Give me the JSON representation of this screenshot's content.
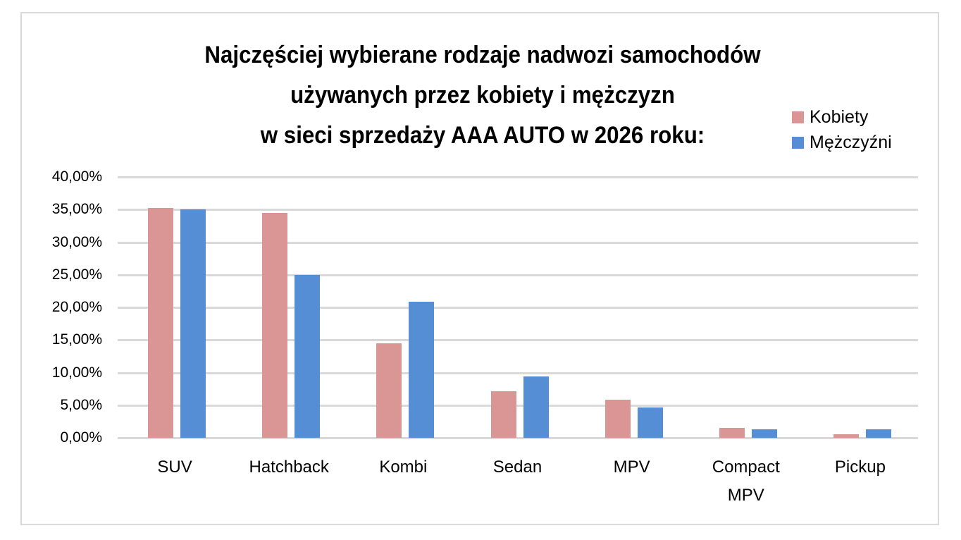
{
  "chart_data": {
    "type": "bar",
    "title": "Najczęściej wybierane rodzaje nadwozi samochodów używanych przez kobiety i mężczyzn w sieci sprzedaży AAA AUTO w 2026 roku:",
    "title_lines": [
      "Najczęściej wybierane rodzaje nadwozi samochodów",
      "używanych przez kobiety i mężczyzn",
      "w sieci sprzedaży AAA AUTO w 2026 roku:"
    ],
    "categories": [
      "SUV",
      "Hatchback",
      "Kombi",
      "Sedan",
      "MPV",
      "Compact MPV",
      "Pickup"
    ],
    "category_lines": [
      [
        "SUV"
      ],
      [
        "Hatchback"
      ],
      [
        "Kombi"
      ],
      [
        "Sedan"
      ],
      [
        "MPV"
      ],
      [
        "Compact",
        "MPV"
      ],
      [
        "Pickup"
      ]
    ],
    "series": [
      {
        "name": "Kobiety",
        "color": "#da9694",
        "values": [
          35.2,
          34.5,
          14.5,
          7.1,
          5.8,
          1.5,
          0.5
        ]
      },
      {
        "name": "Mężczyźni",
        "color": "#558ed5",
        "values": [
          35.0,
          25.0,
          20.9,
          9.4,
          4.7,
          1.3,
          1.3
        ]
      }
    ],
    "legend_labels": [
      "Kobiety",
      "Mężczyźni"
    ],
    "legend_position": "top-right",
    "xlabel": "",
    "ylabel": "",
    "ylim": [
      0,
      40
    ],
    "yticks": [
      "40,00%",
      "35,00%",
      "30,00%",
      "25,00%",
      "20,00%",
      "15,00%",
      "10,00%",
      "5,00%",
      "0,00%"
    ],
    "grid": true
  }
}
